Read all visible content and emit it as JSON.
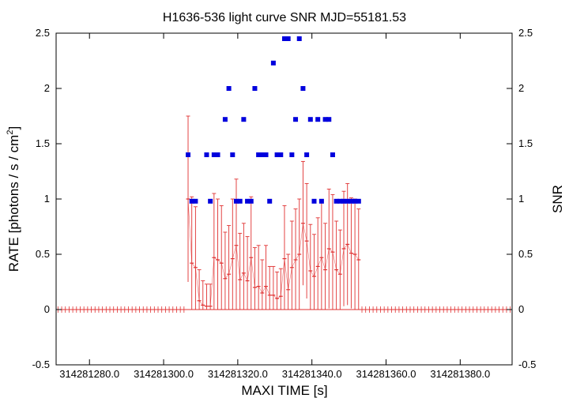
{
  "chart_data": {
    "type": "scatter",
    "title": "H1636-536 light curve  SNR MJD=55181.53",
    "xlabel": "MAXI TIME [s]",
    "ylabel": "RATE [photons / s / cm2]",
    "ylabel_main": "RATE [photons / s / cm",
    "ylabel_sup": "2",
    "ylabel_tail": "]",
    "y2label": "SNR",
    "xlim": [
      314281271,
      314281394
    ],
    "ylim": [
      -0.5,
      2.5
    ],
    "y2lim": [
      -0.5,
      2.5
    ],
    "x_tick_values": [
      314281280,
      314281300,
      314281320,
      314281340,
      314281360,
      314281380
    ],
    "x_tick_labels": [
      "314281280.0",
      "314281300.0",
      "314281320.0",
      "314281340.0",
      "314281360.0",
      "314281380.0"
    ],
    "y_tick_values": [
      -0.5,
      0,
      0.5,
      1,
      1.5,
      2,
      2.5
    ],
    "y_tick_labels": [
      "-0.5",
      "0",
      "0.5",
      "1",
      "1.5",
      "2",
      "2.5"
    ],
    "grid": false,
    "colors": {
      "rate": "#e03030",
      "snr": "#0000dd",
      "axes": "#000000"
    },
    "series": [
      {
        "key": "rate",
        "style": "error-bars",
        "x": [
          314281306.6,
          314281307.6,
          314281308.6,
          314281309.6,
          314281310.6,
          314281311.6,
          314281312.6,
          314281313.6,
          314281314.6,
          314281315.6,
          314281316.6,
          314281317.6,
          314281318.6,
          314281319.6,
          314281320.6,
          314281321.6,
          314281322.6,
          314281323.6,
          314281324.6,
          314281325.6,
          314281326.6,
          314281327.6,
          314281328.6,
          314281329.6,
          314281330.6,
          314281331.6,
          314281332.6,
          314281333.6,
          314281334.6,
          314281335.6,
          314281336.6,
          314281337.6,
          314281338.6,
          314281339.6,
          314281340.6,
          314281341.6,
          314281342.6,
          314281343.6,
          314281344.6,
          314281345.6,
          314281346.6,
          314281347.6,
          314281348.6,
          314281349.6,
          314281350.6,
          314281351.6,
          314281352.6
        ],
        "y": [
          1.0,
          0.42,
          0.38,
          0.08,
          0.04,
          0.03,
          0.03,
          0.47,
          0.45,
          0.42,
          0.28,
          0.32,
          0.46,
          0.58,
          0.27,
          0.33,
          0.26,
          0.47,
          0.2,
          0.21,
          0.15,
          0.21,
          0.13,
          0.13,
          0.1,
          0.12,
          0.46,
          0.18,
          0.38,
          0.45,
          0.5,
          0.78,
          0.62,
          0.35,
          0.3,
          0.39,
          0.47,
          0.36,
          0.55,
          0.52,
          0.36,
          0.32,
          0.55,
          0.59,
          0.51,
          0.5,
          0.45
        ],
        "yerr": [
          0.75,
          0.6,
          0.55,
          0.28,
          0.22,
          0.2,
          0.2,
          0.58,
          0.55,
          0.52,
          0.42,
          0.44,
          0.54,
          0.6,
          0.42,
          0.45,
          0.4,
          0.55,
          0.36,
          0.37,
          0.3,
          0.37,
          0.26,
          0.26,
          0.24,
          0.25,
          0.48,
          0.32,
          0.42,
          0.46,
          0.5,
          0.56,
          0.52,
          0.42,
          0.38,
          0.44,
          0.5,
          0.42,
          0.54,
          0.52,
          0.44,
          0.4,
          0.52,
          0.55,
          0.5,
          0.5,
          0.46
        ],
        "zero_range": [
          314281271,
          314281394
        ],
        "zero_step": 1.0
      },
      {
        "key": "snr",
        "style": "squares",
        "axis": "right",
        "x": [
          314281306.6,
          314281307.6,
          314281308.6,
          314281311.6,
          314281312.6,
          314281313.6,
          314281314.6,
          314281316.6,
          314281317.6,
          314281318.6,
          314281319.6,
          314281320.6,
          314281321.6,
          314281322.6,
          314281323.6,
          314281324.6,
          314281325.6,
          314281326.6,
          314281327.6,
          314281328.6,
          314281329.6,
          314281330.6,
          314281331.6,
          314281332.6,
          314281333.6,
          314281334.6,
          314281335.6,
          314281336.6,
          314281337.6,
          314281338.6,
          314281339.6,
          314281340.6,
          314281341.6,
          314281342.6,
          314281343.6,
          314281344.6,
          314281345.6,
          314281346.6,
          314281347.6,
          314281348.6,
          314281349.6,
          314281350.6,
          314281351.6,
          314281352.6
        ],
        "y": [
          1.4,
          0.98,
          0.98,
          1.4,
          0.98,
          1.4,
          1.4,
          1.72,
          2.0,
          1.4,
          0.98,
          0.98,
          1.72,
          0.98,
          0.98,
          2.0,
          1.4,
          1.4,
          1.4,
          0.98,
          2.23,
          1.4,
          1.4,
          2.45,
          2.45,
          1.4,
          1.72,
          2.45,
          2.0,
          1.4,
          1.72,
          0.98,
          1.72,
          0.98,
          1.72,
          1.72,
          1.4,
          0.98,
          0.98,
          0.98,
          0.98,
          0.98,
          0.98,
          0.98
        ]
      }
    ]
  }
}
